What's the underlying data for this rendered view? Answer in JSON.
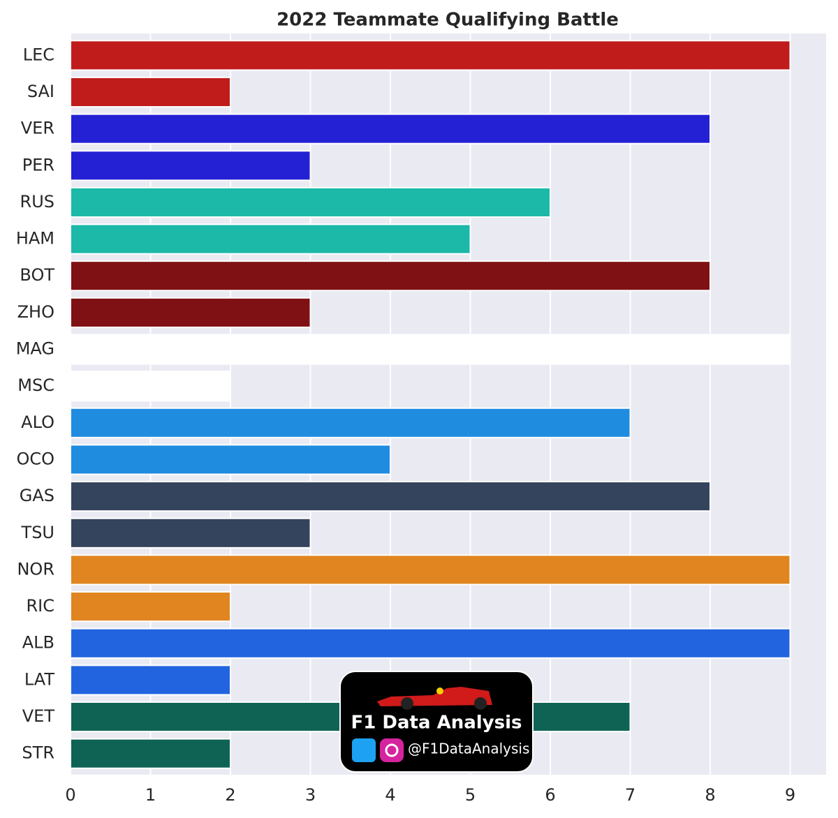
{
  "chart_data": {
    "type": "barh",
    "title": "2022 Teammate Qualifying Battle",
    "categories": [
      "LEC",
      "SAI",
      "VER",
      "PER",
      "RUS",
      "HAM",
      "BOT",
      "ZHO",
      "MAG",
      "MSC",
      "ALO",
      "OCO",
      "GAS",
      "TSU",
      "NOR",
      "RIC",
      "ALB",
      "LAT",
      "VET",
      "STR"
    ],
    "values": [
      9,
      2,
      8,
      3,
      6,
      5,
      8,
      3,
      9,
      2,
      7,
      4,
      8,
      3,
      9,
      2,
      9,
      2,
      7,
      2
    ],
    "colors": [
      "#c01c1c",
      "#c01c1c",
      "#2420d4",
      "#2420d4",
      "#1cb8a8",
      "#1cb8a8",
      "#7f1114",
      "#7f1114",
      "#ffffff",
      "#ffffff",
      "#1f8ce0",
      "#1f8ce0",
      "#34445c",
      "#34445c",
      "#e08520",
      "#e08520",
      "#2264e0",
      "#2264e0",
      "#0f6355",
      "#0f6355"
    ],
    "xlim": [
      0,
      9.45
    ],
    "xticks": [
      0,
      1,
      2,
      3,
      4,
      5,
      6,
      7,
      8,
      9
    ],
    "grid": true
  },
  "watermark": {
    "title": "F1 Data Analysis",
    "handle": "@F1DataAnalysis"
  }
}
